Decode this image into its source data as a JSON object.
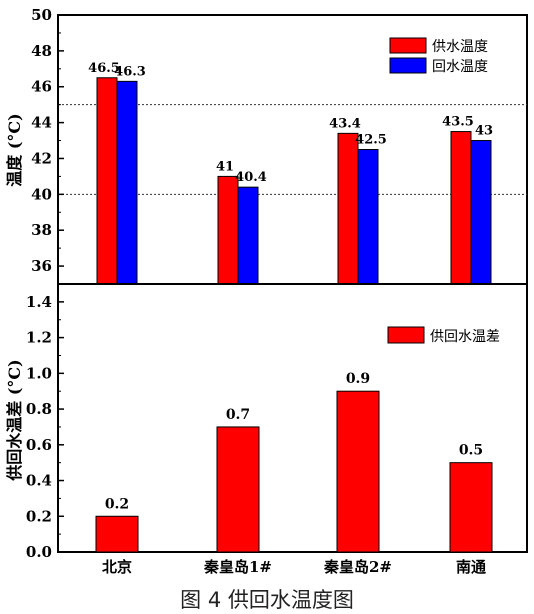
{
  "caption": "图 4  供回水温度图",
  "chart_data": [
    {
      "type": "bar",
      "categories": [
        "北京",
        "秦皇岛1#",
        "秦皇岛2#",
        "南通"
      ],
      "series": [
        {
          "name": "供水温度",
          "values": [
            46.5,
            41,
            43.4,
            43.5
          ],
          "color": "#ff0000"
        },
        {
          "name": "回水温度",
          "values": [
            46.3,
            40.4,
            42.5,
            43
          ],
          "color": "#0000ff"
        }
      ],
      "data_labels": [
        [
          "46.5",
          "41",
          "43.4",
          "43.5"
        ],
        [
          "46.3",
          "40.4",
          "42.5",
          "43"
        ]
      ],
      "ylabel": "温度 (°C)",
      "ylim": [
        35,
        50
      ],
      "yticks": [
        "36",
        "38",
        "40",
        "42",
        "44",
        "46",
        "48",
        "50"
      ],
      "reference_lines": [
        45,
        40
      ],
      "legend": "top-right"
    },
    {
      "type": "bar",
      "categories": [
        "北京",
        "秦皇岛1#",
        "秦皇岛2#",
        "南通"
      ],
      "series": [
        {
          "name": "供回水温差",
          "values": [
            0.2,
            0.7,
            0.9,
            0.5
          ],
          "color": "#ff0000"
        }
      ],
      "data_labels": [
        [
          "0.2",
          "0.7",
          "0.9",
          "0.5"
        ]
      ],
      "ylabel": "供回水温差 (°C)",
      "ylim": [
        0,
        1.5
      ],
      "yticks": [
        "0.0",
        "0.2",
        "0.4",
        "0.6",
        "0.8",
        "1.0",
        "1.2",
        "1.4"
      ],
      "legend": "top-right"
    }
  ]
}
